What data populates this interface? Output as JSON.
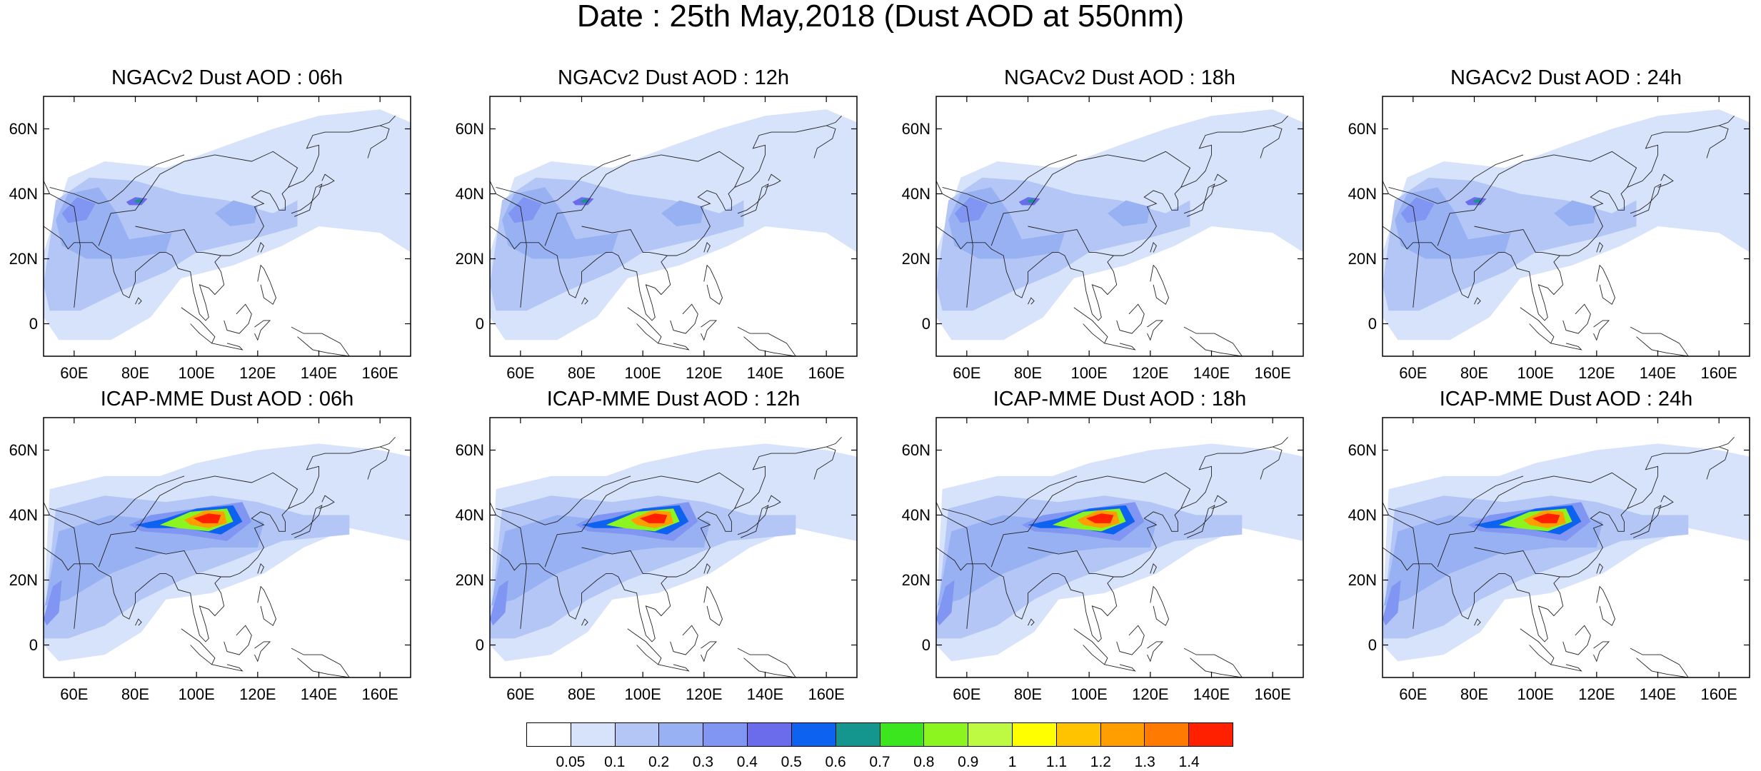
{
  "title": "Date : 25th May,2018 (Dust AOD at 550nm)",
  "map_extent": {
    "lon_min": 50,
    "lon_max": 170,
    "lat_min": -10,
    "lat_max": 70
  },
  "y_ticks": [
    {
      "value": 60,
      "label": "60N"
    },
    {
      "value": 40,
      "label": "40N"
    },
    {
      "value": 20,
      "label": "20N"
    },
    {
      "value": 0,
      "label": "0"
    }
  ],
  "x_ticks": [
    {
      "value": 60,
      "label": "60E"
    },
    {
      "value": 80,
      "label": "80E"
    },
    {
      "value": 100,
      "label": "100E"
    },
    {
      "value": 120,
      "label": "120E"
    },
    {
      "value": 140,
      "label": "140E"
    },
    {
      "value": 160,
      "label": "160E"
    }
  ],
  "colorbar": {
    "labels": [
      "0.05",
      "0.1",
      "0.2",
      "0.3",
      "0.4",
      "0.5",
      "0.6",
      "0.7",
      "0.8",
      "0.9",
      "1",
      "1.1",
      "1.2",
      "1.3",
      "1.4"
    ],
    "colors": [
      "#ffffff",
      "#d7e2fb",
      "#b4c6f6",
      "#98b1f3",
      "#8096f2",
      "#6a6cec",
      "#0d63ef",
      "#14968f",
      "#3ce61e",
      "#8cf41f",
      "#befa42",
      "#ffff00",
      "#ffc300",
      "#ff9e00",
      "#ff7a00",
      "#ff2000"
    ]
  },
  "panels": [
    {
      "title": "NGACv2 Dust AOD : 06h",
      "model": "NGACv2",
      "hour": "06h"
    },
    {
      "title": "NGACv2 Dust AOD : 12h",
      "model": "NGACv2",
      "hour": "12h"
    },
    {
      "title": "NGACv2 Dust AOD : 18h",
      "model": "NGACv2",
      "hour": "18h"
    },
    {
      "title": "NGACv2 Dust AOD : 24h",
      "model": "NGACv2",
      "hour": "24h"
    },
    {
      "title": "ICAP-MME Dust AOD : 06h",
      "model": "ICAP-MME",
      "hour": "06h"
    },
    {
      "title": "ICAP-MME Dust AOD : 12h",
      "model": "ICAP-MME",
      "hour": "12h"
    },
    {
      "title": "ICAP-MME Dust AOD : 18h",
      "model": "ICAP-MME",
      "hour": "18h"
    },
    {
      "title": "ICAP-MME Dust AOD : 24h",
      "model": "ICAP-MME",
      "hour": "24h"
    }
  ],
  "dust_fields": {
    "NGACv2": [
      {
        "level": 1,
        "poly": [
          [
            50,
            22
          ],
          [
            58,
            45
          ],
          [
            70,
            50
          ],
          [
            90,
            48
          ],
          [
            110,
            55
          ],
          [
            125,
            60
          ],
          [
            140,
            64
          ],
          [
            160,
            66
          ],
          [
            170,
            62
          ],
          [
            170,
            22
          ],
          [
            160,
            28
          ],
          [
            140,
            30
          ],
          [
            128,
            24
          ],
          [
            112,
            18
          ],
          [
            95,
            14
          ],
          [
            85,
            2
          ],
          [
            72,
            -5
          ],
          [
            55,
            -5
          ],
          [
            50,
            2
          ]
        ]
      },
      {
        "level": 2,
        "poly": [
          [
            50,
            12
          ],
          [
            54,
            38
          ],
          [
            65,
            45
          ],
          [
            80,
            44
          ],
          [
            95,
            40
          ],
          [
            110,
            38
          ],
          [
            125,
            34
          ],
          [
            133,
            38
          ],
          [
            133,
            30
          ],
          [
            118,
            26
          ],
          [
            100,
            22
          ],
          [
            90,
            16
          ],
          [
            75,
            10
          ],
          [
            62,
            4
          ],
          [
            52,
            4
          ]
        ]
      },
      {
        "level": 3,
        "poly": [
          [
            54,
            32
          ],
          [
            58,
            40
          ],
          [
            68,
            42
          ],
          [
            74,
            34
          ],
          [
            78,
            26
          ],
          [
            92,
            28
          ],
          [
            90,
            22
          ],
          [
            76,
            20
          ],
          [
            64,
            20
          ],
          [
            56,
            24
          ]
        ]
      },
      {
        "level": 3,
        "poly": [
          [
            106,
            34
          ],
          [
            112,
            38
          ],
          [
            120,
            36
          ],
          [
            119,
            31
          ],
          [
            111,
            30
          ]
        ]
      },
      {
        "level": 4,
        "poly": [
          [
            56,
            34
          ],
          [
            61,
            39
          ],
          [
            67,
            37
          ],
          [
            64,
            32
          ],
          [
            58,
            31
          ]
        ]
      },
      {
        "level": 5,
        "poly": [
          [
            77,
            37.5
          ],
          [
            80,
            39
          ],
          [
            84,
            38.5
          ],
          [
            82,
            36.5
          ],
          [
            78,
            36.5
          ]
        ]
      },
      {
        "level": 7,
        "poly": [
          [
            79.5,
            37.8
          ],
          [
            81.5,
            38.5
          ],
          [
            82.5,
            37.6
          ],
          [
            80.5,
            37.2
          ]
        ]
      }
    ],
    "ICAP-MME": [
      {
        "level": 1,
        "poly": [
          [
            50,
            10
          ],
          [
            52,
            48
          ],
          [
            70,
            52
          ],
          [
            88,
            52
          ],
          [
            100,
            56
          ],
          [
            120,
            60
          ],
          [
            140,
            62
          ],
          [
            160,
            60
          ],
          [
            170,
            58
          ],
          [
            170,
            32
          ],
          [
            150,
            36
          ],
          [
            135,
            30
          ],
          [
            122,
            22
          ],
          [
            105,
            16
          ],
          [
            90,
            14
          ],
          [
            82,
            4
          ],
          [
            70,
            -3
          ],
          [
            55,
            -5
          ],
          [
            50,
            0
          ]
        ]
      },
      {
        "level": 2,
        "poly": [
          [
            50,
            6
          ],
          [
            54,
            42
          ],
          [
            70,
            46
          ],
          [
            90,
            44
          ],
          [
            105,
            46
          ],
          [
            120,
            44
          ],
          [
            135,
            40
          ],
          [
            150,
            40
          ],
          [
            150,
            34
          ],
          [
            128,
            32
          ],
          [
            112,
            26
          ],
          [
            95,
            20
          ],
          [
            82,
            14
          ],
          [
            70,
            6
          ],
          [
            58,
            2
          ],
          [
            50,
            2
          ]
        ]
      },
      {
        "level": 3,
        "poly": [
          [
            50,
            10
          ],
          [
            55,
            35
          ],
          [
            72,
            40
          ],
          [
            92,
            38
          ],
          [
            112,
            40
          ],
          [
            122,
            38
          ],
          [
            120,
            30
          ],
          [
            105,
            30
          ],
          [
            88,
            28
          ],
          [
            72,
            22
          ],
          [
            58,
            14
          ],
          [
            50,
            12
          ]
        ]
      },
      {
        "level": 4,
        "poly": [
          [
            78,
            37
          ],
          [
            85,
            40
          ],
          [
            100,
            42
          ],
          [
            115,
            44
          ],
          [
            118,
            38
          ],
          [
            110,
            32
          ],
          [
            96,
            34
          ],
          [
            82,
            35
          ]
        ]
      },
      {
        "level": 4,
        "poly": [
          [
            50,
            8
          ],
          [
            53,
            18
          ],
          [
            56,
            20
          ],
          [
            55,
            10
          ],
          [
            51,
            6
          ]
        ]
      },
      {
        "level": 6,
        "poly": [
          [
            80,
            37
          ],
          [
            90,
            39
          ],
          [
            100,
            42
          ],
          [
            112,
            43
          ],
          [
            115,
            38
          ],
          [
            108,
            34
          ],
          [
            96,
            36
          ],
          [
            84,
            36
          ]
        ]
      },
      {
        "level": 9,
        "poly": [
          [
            88,
            37
          ],
          [
            98,
            41
          ],
          [
            110,
            42
          ],
          [
            112,
            38
          ],
          [
            104,
            35
          ],
          [
            94,
            36
          ]
        ]
      },
      {
        "level": 13,
        "poly": [
          [
            96,
            38.5
          ],
          [
            103,
            41.5
          ],
          [
            109,
            41
          ],
          [
            110,
            37.5
          ],
          [
            104,
            36
          ],
          [
            98,
            37
          ]
        ]
      },
      {
        "level": 15,
        "poly": [
          [
            99,
            39
          ],
          [
            104,
            40.5
          ],
          [
            108,
            40
          ],
          [
            107,
            37.5
          ],
          [
            102,
            37.5
          ]
        ]
      }
    ]
  }
}
